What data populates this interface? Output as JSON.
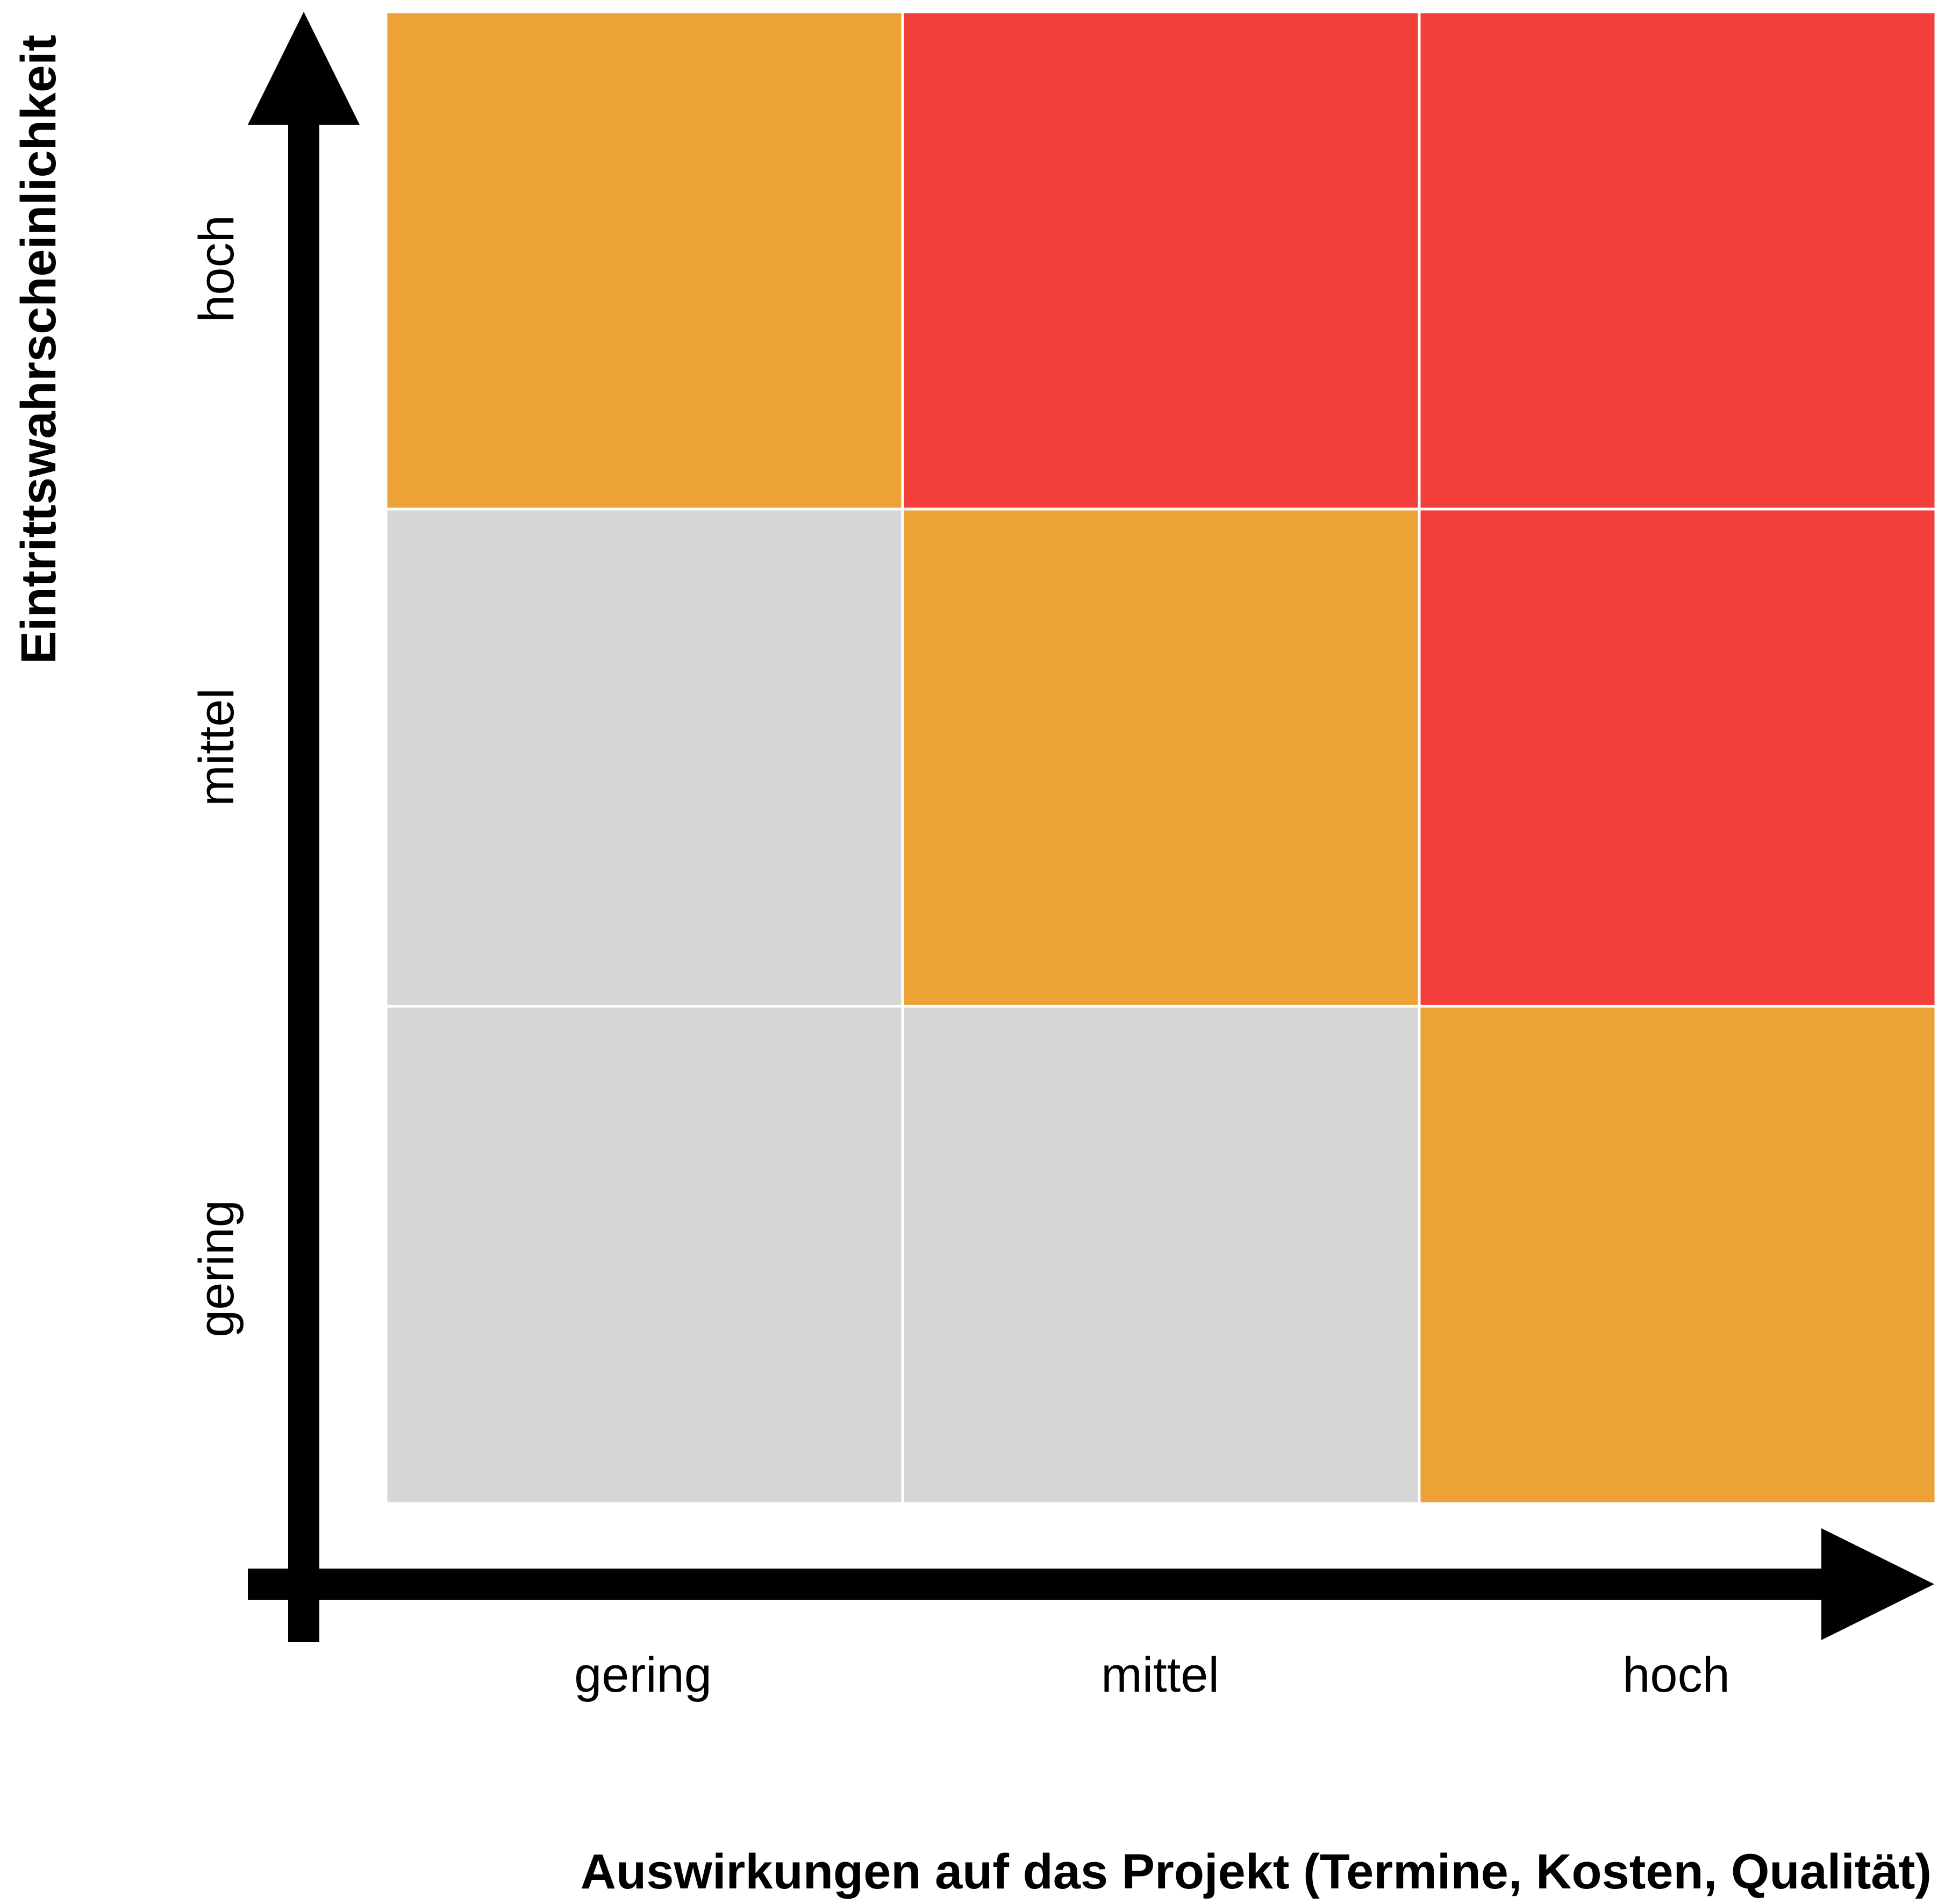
{
  "chart_data": {
    "type": "heatmap",
    "title": "",
    "xlabel": "Auswirkungen auf das Projekt (Termine, Kosten, Qualität)",
    "ylabel": "Eintrittswahrscheinlichkeit",
    "x_categories": [
      "gering",
      "mittel",
      "hoch"
    ],
    "y_categories": [
      "gering",
      "mittel",
      "hoch"
    ],
    "cells": [
      {
        "x": "gering",
        "y": "hoch",
        "level": "orange"
      },
      {
        "x": "mittel",
        "y": "hoch",
        "level": "red"
      },
      {
        "x": "hoch",
        "y": "hoch",
        "level": "red"
      },
      {
        "x": "gering",
        "y": "mittel",
        "level": "grey"
      },
      {
        "x": "mittel",
        "y": "mittel",
        "level": "orange"
      },
      {
        "x": "hoch",
        "y": "mittel",
        "level": "red"
      },
      {
        "x": "gering",
        "y": "gering",
        "level": "grey"
      },
      {
        "x": "mittel",
        "y": "gering",
        "level": "grey"
      },
      {
        "x": "hoch",
        "y": "gering",
        "level": "orange"
      }
    ],
    "colors": {
      "grey": "#d6d6d6",
      "orange": "#eca235",
      "red": "#f43e39",
      "axis": "#000000"
    },
    "grid": false,
    "legend": "none"
  }
}
